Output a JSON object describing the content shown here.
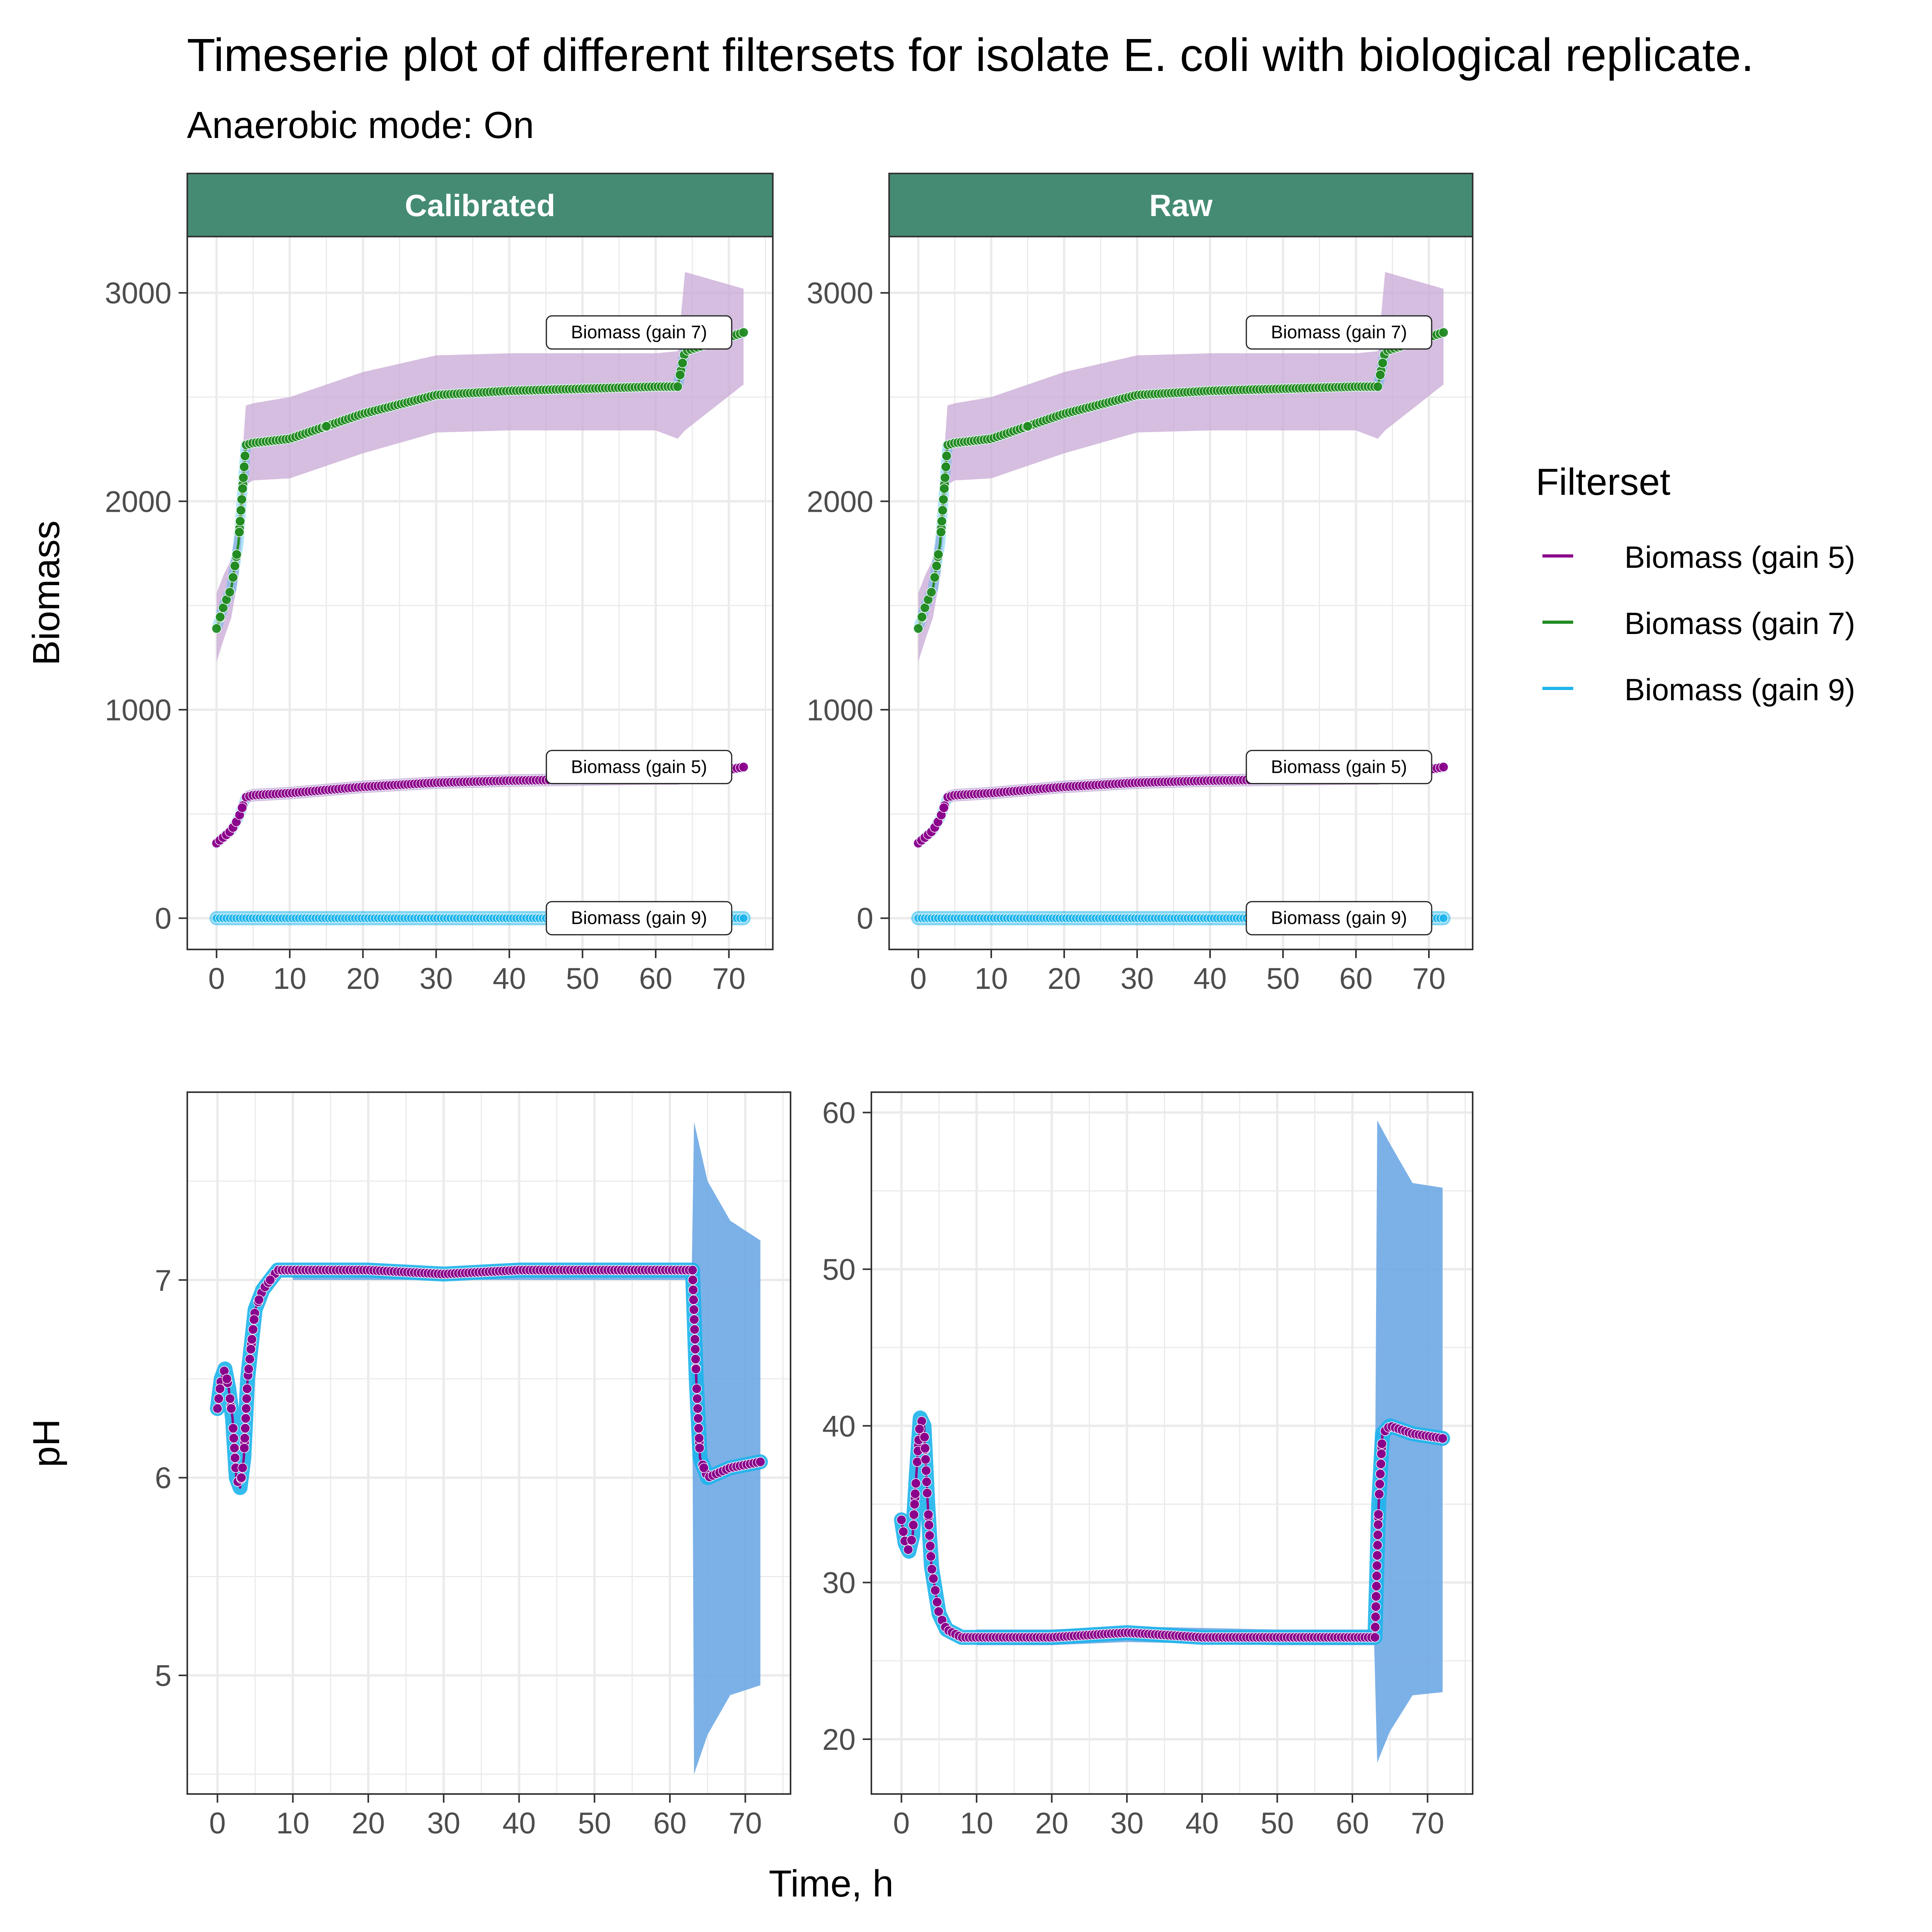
{
  "title": "Timeserie plot of different filtersets for isolate E. coli with biological replicate.",
  "subtitle": "Anaerobic mode: On",
  "x_axis_label": "Time, h",
  "legend": {
    "title": "Filterset",
    "items": [
      {
        "label": "Biomass (gain 5)",
        "color": "#8B008B"
      },
      {
        "label": "Biomass (gain 7)",
        "color": "#228B22"
      },
      {
        "label": "Biomass (gain 9)",
        "color": "#1EB4EB"
      }
    ]
  },
  "strip_color": "#458B74",
  "band_colors": {
    "biomass": "#C8A8D6",
    "ph": "#6EA8E4"
  },
  "chart_data": [
    {
      "type": "line",
      "panel": "biomass-calibrated",
      "strip_label": "Calibrated",
      "ylabel": "Biomass",
      "xlim": [
        -4,
        76
      ],
      "ylim": [
        -150,
        3270
      ],
      "x_ticks": [
        0,
        10,
        20,
        30,
        40,
        50,
        60,
        70
      ],
      "x_tick_labels": [
        "0",
        "10",
        "20",
        "30",
        "40",
        "50",
        "60",
        "70"
      ],
      "y_ticks": [
        0,
        1000,
        2000,
        3000
      ],
      "y_tick_labels": [
        "0",
        "1000",
        "2000",
        "3000"
      ],
      "grid": true,
      "series": [
        {
          "name": "Biomass (gain 7)",
          "color": "#228B22",
          "x": [
            0,
            1,
            2,
            3,
            4,
            5,
            10,
            20,
            30,
            40,
            50,
            60,
            63,
            64,
            72
          ],
          "y": [
            1390,
            1500,
            1580,
            1800,
            2270,
            2280,
            2300,
            2420,
            2510,
            2530,
            2540,
            2550,
            2550,
            2720,
            2810
          ],
          "band_upper": [
            1560,
            1650,
            1720,
            1950,
            2460,
            2470,
            2500,
            2620,
            2700,
            2710,
            2710,
            2710,
            2720,
            3100,
            3020
          ],
          "band_lower": [
            1230,
            1340,
            1440,
            1640,
            2080,
            2100,
            2110,
            2230,
            2330,
            2340,
            2340,
            2340,
            2300,
            2340,
            2560
          ],
          "end_label": "Biomass (gain 7)",
          "end_value": 2810
        },
        {
          "name": "Biomass (gain 5)",
          "color": "#8B008B",
          "x": [
            0,
            1,
            2,
            3,
            4,
            5,
            10,
            20,
            30,
            40,
            50,
            60,
            63,
            72
          ],
          "y": [
            360,
            390,
            420,
            480,
            580,
            590,
            600,
            630,
            650,
            660,
            665,
            670,
            670,
            725
          ],
          "band_upper": [
            380,
            410,
            450,
            510,
            610,
            620,
            630,
            660,
            680,
            690,
            695,
            700,
            700,
            740
          ],
          "band_lower": [
            340,
            370,
            400,
            450,
            550,
            560,
            570,
            600,
            620,
            630,
            635,
            640,
            640,
            705
          ],
          "end_label": "Biomass (gain 5)",
          "end_value": 725
        },
        {
          "name": "Biomass (gain 9)",
          "color": "#1EB4EB",
          "x": [
            0,
            20,
            40,
            60,
            72
          ],
          "y": [
            0,
            0,
            0,
            0,
            0
          ],
          "end_label": "Biomass (gain 9)",
          "end_value": 0
        }
      ]
    },
    {
      "type": "line",
      "panel": "biomass-raw",
      "strip_label": "Raw",
      "xlim": [
        -4,
        76
      ],
      "ylim": [
        -150,
        3270
      ],
      "x_ticks": [
        0,
        10,
        20,
        30,
        40,
        50,
        60,
        70
      ],
      "x_tick_labels": [
        "0",
        "10",
        "20",
        "30",
        "40",
        "50",
        "60",
        "70"
      ],
      "y_ticks": [
        0,
        1000,
        2000,
        3000
      ],
      "y_tick_labels": [
        "0",
        "1000",
        "2000",
        "3000"
      ],
      "grid": true,
      "series": [
        {
          "name": "Biomass (gain 7)",
          "color": "#228B22",
          "x": [
            0,
            1,
            2,
            3,
            4,
            5,
            10,
            20,
            30,
            40,
            50,
            60,
            63,
            64,
            72
          ],
          "y": [
            1390,
            1500,
            1580,
            1800,
            2270,
            2280,
            2300,
            2420,
            2510,
            2530,
            2540,
            2550,
            2550,
            2720,
            2810
          ],
          "band_upper": [
            1560,
            1650,
            1720,
            1950,
            2460,
            2470,
            2500,
            2620,
            2700,
            2710,
            2710,
            2710,
            2720,
            3100,
            3020
          ],
          "band_lower": [
            1230,
            1340,
            1440,
            1640,
            2080,
            2100,
            2110,
            2230,
            2330,
            2340,
            2340,
            2340,
            2300,
            2340,
            2560
          ],
          "end_label": "Biomass (gain 7)",
          "end_value": 2810
        },
        {
          "name": "Biomass (gain 5)",
          "color": "#8B008B",
          "x": [
            0,
            1,
            2,
            3,
            4,
            5,
            10,
            20,
            30,
            40,
            50,
            60,
            63,
            72
          ],
          "y": [
            360,
            390,
            420,
            480,
            580,
            590,
            600,
            630,
            650,
            660,
            665,
            670,
            670,
            725
          ],
          "band_upper": [
            380,
            410,
            450,
            510,
            610,
            620,
            630,
            660,
            680,
            690,
            695,
            700,
            700,
            740
          ],
          "band_lower": [
            340,
            370,
            400,
            450,
            550,
            560,
            570,
            600,
            620,
            630,
            635,
            640,
            640,
            705
          ],
          "end_label": "Biomass (gain 5)",
          "end_value": 725
        },
        {
          "name": "Biomass (gain 9)",
          "color": "#1EB4EB",
          "x": [
            0,
            20,
            40,
            60,
            72
          ],
          "y": [
            0,
            0,
            0,
            0,
            0
          ],
          "end_label": "Biomass (gain 9)",
          "end_value": 0
        }
      ]
    },
    {
      "type": "line",
      "panel": "ph-calibrated",
      "ylabel": "pH",
      "xlim": [
        -4,
        76
      ],
      "ylim": [
        4.4,
        7.95
      ],
      "x_ticks": [
        0,
        10,
        20,
        30,
        40,
        50,
        60,
        70
      ],
      "x_tick_labels": [
        "0",
        "10",
        "20",
        "30",
        "40",
        "50",
        "60",
        "70"
      ],
      "y_ticks": [
        5,
        6,
        7
      ],
      "y_tick_labels": [
        "5",
        "6",
        "7"
      ],
      "grid": true,
      "series": [
        {
          "name": "pH",
          "color": "#8B008B",
          "x": [
            0,
            0.5,
            1,
            1.5,
            2,
            2.5,
            3,
            3.5,
            4,
            5,
            6,
            8,
            10,
            20,
            30,
            40,
            50,
            60,
            63,
            63.5,
            64,
            65,
            68,
            72
          ],
          "y": [
            6.35,
            6.5,
            6.55,
            6.45,
            6.3,
            6.0,
            5.95,
            6.1,
            6.5,
            6.85,
            6.95,
            7.05,
            7.05,
            7.05,
            7.03,
            7.05,
            7.05,
            7.05,
            7.05,
            6.5,
            6.1,
            6.0,
            6.05,
            6.08
          ],
          "band_upper": [
            7.05,
            7.05,
            7.05,
            7.05,
            7.05,
            7.8,
            7.5,
            7.3,
            7.2
          ],
          "band_lower": [
            7.0,
            7.0,
            7.0,
            7.0,
            7.0,
            4.5,
            4.7,
            4.9,
            4.95
          ],
          "band_x": [
            10,
            20,
            30,
            50,
            62.9,
            63.2,
            65,
            68,
            72
          ]
        }
      ]
    },
    {
      "type": "line",
      "panel": "ph-raw",
      "xlim": [
        -4,
        76
      ],
      "ylim": [
        16.5,
        61.3
      ],
      "x_ticks": [
        0,
        10,
        20,
        30,
        40,
        50,
        60,
        70
      ],
      "x_tick_labels": [
        "0",
        "10",
        "20",
        "30",
        "40",
        "50",
        "60",
        "70"
      ],
      "y_ticks": [
        20,
        30,
        40,
        50,
        60
      ],
      "y_tick_labels": [
        "20",
        "30",
        "40",
        "50",
        "60"
      ],
      "grid": true,
      "series": [
        {
          "name": "pH",
          "color": "#8B008B",
          "x": [
            0,
            0.5,
            1,
            1.5,
            2,
            2.5,
            3,
            3.5,
            4,
            5,
            6,
            8,
            10,
            20,
            30,
            40,
            50,
            60,
            63,
            63.5,
            64,
            65,
            68,
            72
          ],
          "y": [
            34,
            32.5,
            32,
            33,
            37,
            40.5,
            40,
            35,
            31,
            28,
            27,
            26.5,
            26.5,
            26.5,
            26.8,
            26.5,
            26.5,
            26.5,
            26.5,
            35,
            39.5,
            40,
            39.5,
            39.2
          ],
          "band_upper": [
            27,
            27,
            27.2,
            27,
            27,
            59.5,
            58,
            55.5,
            55.2
          ],
          "band_lower": [
            26,
            26,
            26.2,
            26,
            26,
            18.5,
            20.5,
            22.8,
            23
          ],
          "band_x": [
            10,
            20,
            30,
            50,
            62.9,
            63.3,
            65,
            68,
            72
          ]
        }
      ]
    }
  ]
}
